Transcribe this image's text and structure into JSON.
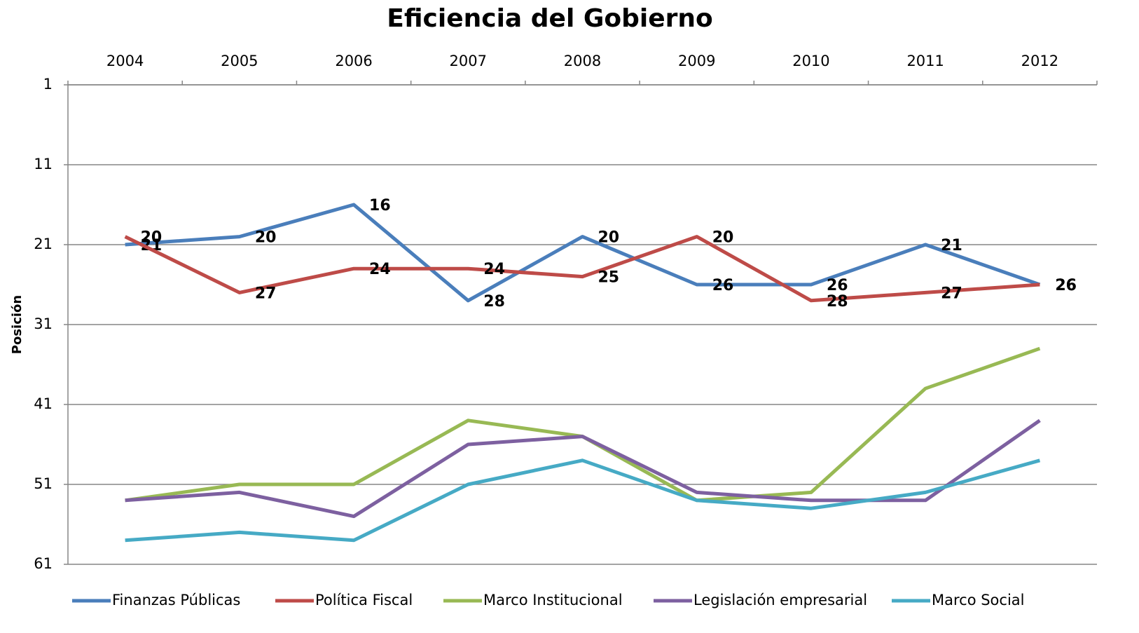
{
  "chart_data": {
    "type": "line",
    "title": "Eficiencia del Gobierno",
    "y_label": "Posición",
    "categories": [
      "2004",
      "2005",
      "2006",
      "2007",
      "2008",
      "2009",
      "2010",
      "2011",
      "2012"
    ],
    "ylim": [
      1,
      61
    ],
    "y_reversed": true,
    "yticks": [
      1,
      11,
      21,
      31,
      41,
      51,
      61
    ],
    "grid": true,
    "x_axis_position": "top",
    "legend": "bottom",
    "series": [
      {
        "name": "Finanzas Públicas",
        "color": "#4a7ebb",
        "show_labels": true,
        "values": [
          21,
          20,
          16,
          28,
          20,
          26,
          26,
          21,
          26
        ]
      },
      {
        "name": "Política Fiscal",
        "color": "#be4b48",
        "show_labels": true,
        "values": [
          20,
          27,
          24,
          24,
          25,
          20,
          28,
          27,
          26
        ]
      },
      {
        "name": "Marco Institucional",
        "color": "#98b954",
        "show_labels": false,
        "values": [
          53,
          51,
          51,
          43,
          45,
          53,
          52,
          39,
          34
        ]
      },
      {
        "name": "Legislación empresarial",
        "color": "#7d60a0",
        "show_labels": false,
        "values": [
          53,
          52,
          55,
          46,
          45,
          52,
          53,
          53,
          43
        ]
      },
      {
        "name": "Marco Social",
        "color": "#46aac5",
        "show_labels": false,
        "values": [
          58,
          57,
          58,
          51,
          48,
          53,
          54,
          52,
          48
        ]
      }
    ]
  }
}
